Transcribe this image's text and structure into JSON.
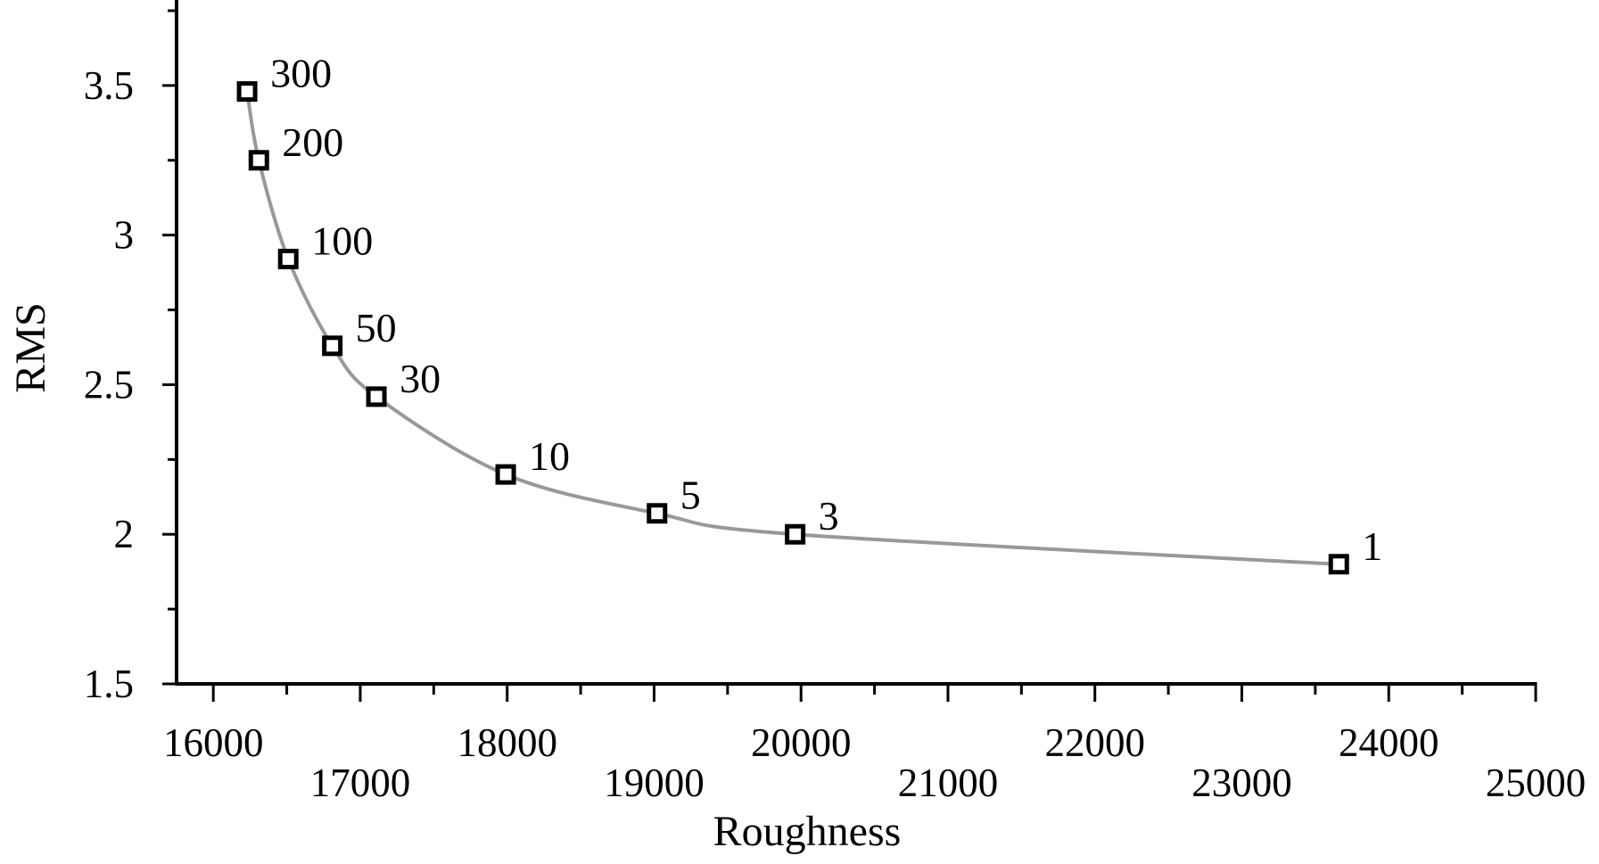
{
  "chart_data": {
    "type": "line",
    "xlabel": "Roughness",
    "ylabel": "RMS",
    "xlim": [
      15750,
      25000
    ],
    "ylim": [
      1.5,
      3.75
    ],
    "x_ticks": [
      16000,
      17000,
      18000,
      19000,
      20000,
      21000,
      22000,
      23000,
      24000,
      25000
    ],
    "x_tick_labels": [
      "16000",
      "17000",
      "18000",
      "19000",
      "20000",
      "21000",
      "22000",
      "23000",
      "24000",
      "25000"
    ],
    "y_ticks": [
      1.5,
      2,
      2.5,
      3,
      3.5
    ],
    "y_tick_labels": [
      "1.5",
      "2",
      "2.5",
      "3",
      "3.5"
    ],
    "grid": false,
    "line_color": "#999999",
    "marker": "square",
    "marker_color": "#000000",
    "series": [
      {
        "x": [
          16230,
          16310,
          16510,
          16810,
          17110,
          17990,
          19020,
          19960,
          23660
        ],
        "y": [
          3.48,
          3.25,
          2.92,
          2.63,
          2.46,
          2.2,
          2.07,
          2.0,
          1.9
        ],
        "point_labels": [
          "300",
          "200",
          "100",
          "50",
          "30",
          "10",
          "5",
          "3",
          "1"
        ]
      }
    ]
  }
}
